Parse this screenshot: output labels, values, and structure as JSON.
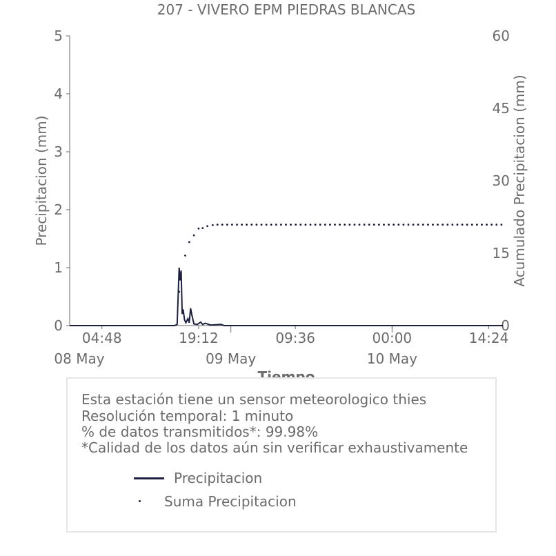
{
  "chart_data": {
    "type": "line",
    "title": "207 - VIVERO EPM PIEDRAS BLANCAS",
    "xlabel": "Tiempo",
    "ylabel": "Precipitacion (mm)",
    "y2label": "Acumulado Precipitacion (mm)",
    "ylim": [
      0,
      5
    ],
    "y2lim": [
      0,
      60
    ],
    "yticks": [
      "0",
      "1",
      "2",
      "3",
      "4",
      "5"
    ],
    "y2ticks": [
      "0",
      "15",
      "30",
      "45",
      "60"
    ],
    "xlim_hours": [
      0,
      64.5
    ],
    "xticks": [
      {
        "hours": 4.8,
        "label": "04:48",
        "date": "08 May"
      },
      {
        "hours": 19.2,
        "label": "19:12",
        "date": ""
      },
      {
        "hours": 33.6,
        "label": "09:36",
        "date": ""
      },
      {
        "hours": 48.0,
        "label": "00:00",
        "date": ""
      },
      {
        "hours": 62.4,
        "label": "14:24",
        "date": ""
      }
    ],
    "date_labels": [
      {
        "hours": 0,
        "label": "08 May"
      },
      {
        "hours": 24,
        "label": "09 May"
      },
      {
        "hours": 48,
        "label": "10 May"
      }
    ],
    "grid": false,
    "series": [
      {
        "name": "Precipitacion",
        "style": "line",
        "points": [
          [
            0,
            0
          ],
          [
            15.6,
            0
          ],
          [
            16.0,
            0.02
          ],
          [
            16.3,
            1.0
          ],
          [
            16.45,
            0.78
          ],
          [
            16.6,
            0.95
          ],
          [
            16.75,
            0.2
          ],
          [
            16.9,
            0.28
          ],
          [
            17.1,
            0.1
          ],
          [
            17.3,
            0.05
          ],
          [
            17.6,
            0.12
          ],
          [
            17.8,
            0.05
          ],
          [
            18.0,
            0.3
          ],
          [
            18.2,
            0.18
          ],
          [
            18.5,
            0.03
          ],
          [
            19.0,
            0.02
          ],
          [
            19.5,
            0.06
          ],
          [
            19.8,
            0.02
          ],
          [
            20.2,
            0.04
          ],
          [
            20.7,
            0.02
          ],
          [
            21.0,
            0.01
          ],
          [
            22.5,
            0.02
          ],
          [
            23.0,
            0
          ],
          [
            64.5,
            0
          ]
        ]
      },
      {
        "name": "Suma Precipitacion",
        "style": "dotted",
        "points": [
          [
            16.3,
            7.0
          ],
          [
            17.2,
            14.5
          ],
          [
            17.8,
            17.3
          ],
          [
            18.5,
            18.7
          ],
          [
            19.2,
            20.1
          ],
          [
            19.8,
            20.2
          ],
          [
            20.5,
            20.6
          ],
          [
            21.3,
            20.8
          ],
          [
            22.0,
            20.9
          ],
          [
            25,
            20.9
          ],
          [
            35,
            20.9
          ],
          [
            45,
            20.9
          ],
          [
            55,
            20.9
          ],
          [
            64.5,
            20.9
          ]
        ]
      }
    ]
  },
  "info": {
    "line1": "Esta estación tiene un sensor meteorologico thies",
    "line2": "Resolución temporal: 1 minuto",
    "line3": "% de datos transmitidos*: 99.98%",
    "line4": "*Calidad de los datos aún sin verificar exhaustivamente"
  },
  "legend": [
    {
      "label": "Precipitacion",
      "symbol": "line"
    },
    {
      "label": "Suma Precipitacion",
      "symbol": "dot"
    }
  ],
  "colors": {
    "series": "#1c1f3f",
    "text": "#6b6b6b",
    "box_border": "#e6e6e6"
  }
}
